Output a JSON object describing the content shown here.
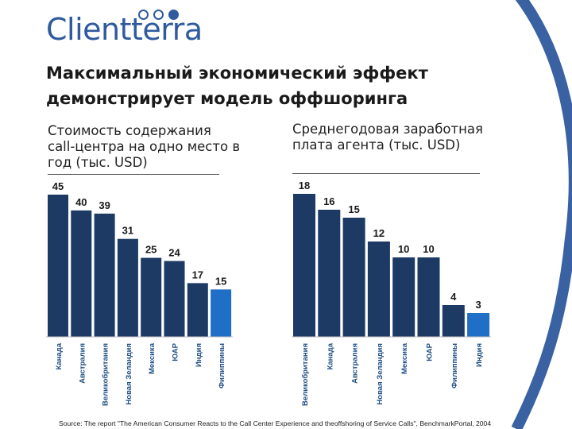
{
  "brand": {
    "name": "Clientterra",
    "color": "#2f5a9e"
  },
  "title": "Максимальный экономический эффект демонстрирует модель оффшоринга",
  "colors": {
    "bar": "#1c3a63",
    "highlight": "#1f6fc6",
    "arc": "#2f5a9e"
  },
  "chart_data": [
    {
      "type": "bar",
      "title": "Стоимость содержания call-центра на одно место в год (тыс. USD)",
      "categories": [
        "Канада",
        "Австралия",
        "Великобритания",
        "Новая Зеландия",
        "Мексика",
        "ЮАР",
        "Индия",
        "Филиппины"
      ],
      "values": [
        45,
        40,
        39,
        31,
        25,
        24,
        17,
        15
      ],
      "highlight": "Филиппины",
      "ylim": [
        0,
        45
      ],
      "grid": false
    },
    {
      "type": "bar",
      "title": "Среднегодовая заработная плата агента (тыс. USD)",
      "categories": [
        "Великобритания",
        "Канада",
        "Австралия",
        "Новая Зеландия",
        "Мексика",
        "ЮАР",
        "Филиппины",
        "Индия"
      ],
      "values": [
        18,
        16,
        15,
        12,
        10,
        10,
        4,
        3
      ],
      "highlight": "Индия",
      "ylim": [
        0,
        18
      ],
      "grid": false
    }
  ],
  "source": "Source:  The report \"The American Consumer Reacts to the Call Center Experience and theoffshoring of Service Calls\", BenchmarkPortal, 2004"
}
